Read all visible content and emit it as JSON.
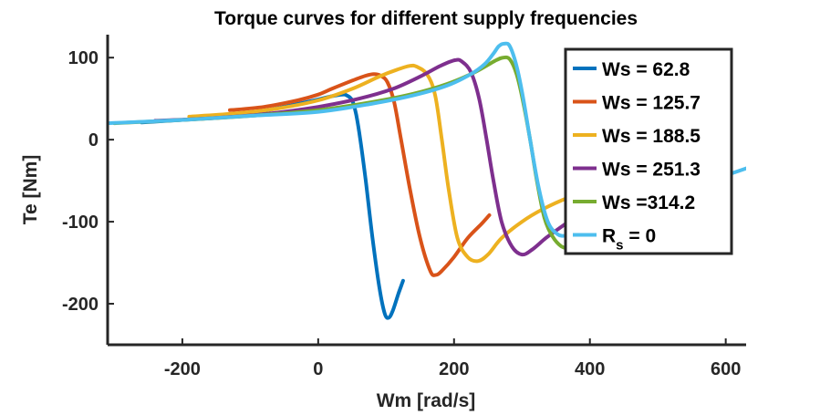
{
  "chart_data": {
    "type": "line",
    "title": "Torque curves for different supply frequencies",
    "xlabel": "Wm [rad/s]",
    "ylabel": "Te [Nm]",
    "xlim": [
      -310,
      630
    ],
    "ylim": [
      -250,
      128
    ],
    "xticks": [
      -200,
      0,
      200,
      400,
      600
    ],
    "yticks": [
      -200,
      -100,
      0,
      100
    ],
    "xtick_labels": [
      "-200",
      "0",
      "200",
      "400",
      "600"
    ],
    "ytick_labels": [
      "-200",
      "-100",
      "0",
      "100"
    ],
    "grid": false,
    "legend_position": "top-right",
    "series": [
      {
        "name": "Ws = 62.8",
        "color": "#0072BD",
        "points": [
          [
            -260,
            21
          ],
          [
            -200,
            24
          ],
          [
            -150,
            27
          ],
          [
            -100,
            32
          ],
          [
            -50,
            40
          ],
          [
            0,
            49
          ],
          [
            20,
            53
          ],
          [
            35,
            55
          ],
          [
            42,
            54
          ],
          [
            50,
            48
          ],
          [
            56,
            30
          ],
          [
            62,
            0
          ],
          [
            70,
            -50
          ],
          [
            80,
            -120
          ],
          [
            90,
            -180
          ],
          [
            98,
            -212
          ],
          [
            104,
            -217
          ],
          [
            110,
            -208
          ],
          [
            118,
            -188
          ],
          [
            125,
            -172
          ]
        ]
      },
      {
        "name": "Ws = 125.7",
        "color": "#D95319",
        "points": [
          [
            -130,
            36
          ],
          [
            -80,
            40
          ],
          [
            -30,
            48
          ],
          [
            0,
            55
          ],
          [
            20,
            62
          ],
          [
            50,
            72
          ],
          [
            70,
            78
          ],
          [
            82,
            80
          ],
          [
            92,
            78
          ],
          [
            102,
            70
          ],
          [
            112,
            45
          ],
          [
            122,
            0
          ],
          [
            135,
            -60
          ],
          [
            150,
            -120
          ],
          [
            165,
            -160
          ],
          [
            173,
            -165
          ],
          [
            182,
            -160
          ],
          [
            200,
            -143
          ],
          [
            220,
            -120
          ],
          [
            240,
            -103
          ],
          [
            252,
            -92
          ]
        ]
      },
      {
        "name": "Ws = 188.5",
        "color": "#EDB120",
        "points": [
          [
            -190,
            28
          ],
          [
            -120,
            32
          ],
          [
            -60,
            38
          ],
          [
            0,
            48
          ],
          [
            50,
            62
          ],
          [
            90,
            77
          ],
          [
            115,
            85
          ],
          [
            135,
            90
          ],
          [
            145,
            89
          ],
          [
            160,
            80
          ],
          [
            172,
            55
          ],
          [
            182,
            0
          ],
          [
            192,
            -60
          ],
          [
            205,
            -120
          ],
          [
            220,
            -143
          ],
          [
            235,
            -148
          ],
          [
            250,
            -140
          ],
          [
            270,
            -120
          ],
          [
            300,
            -100
          ],
          [
            330,
            -85
          ],
          [
            370,
            -70
          ],
          [
            400,
            -62
          ]
        ]
      },
      {
        "name": "Ws = 251.3",
        "color": "#7E2F8E",
        "points": [
          [
            -240,
            23
          ],
          [
            -160,
            26
          ],
          [
            -80,
            31
          ],
          [
            0,
            40
          ],
          [
            60,
            50
          ],
          [
            110,
            62
          ],
          [
            150,
            77
          ],
          [
            180,
            90
          ],
          [
            202,
            97
          ],
          [
            212,
            95
          ],
          [
            225,
            82
          ],
          [
            237,
            50
          ],
          [
            248,
            0
          ],
          [
            258,
            -50
          ],
          [
            270,
            -100
          ],
          [
            285,
            -130
          ],
          [
            300,
            -140
          ],
          [
            315,
            -134
          ],
          [
            335,
            -120
          ],
          [
            355,
            -108
          ],
          [
            375,
            -96
          ]
        ]
      },
      {
        "name": "Ws =314.2",
        "color": "#77AC30",
        "points": [
          [
            -300,
            20
          ],
          [
            -200,
            24
          ],
          [
            -100,
            29
          ],
          [
            0,
            36
          ],
          [
            80,
            46
          ],
          [
            140,
            56
          ],
          [
            190,
            68
          ],
          [
            230,
            82
          ],
          [
            260,
            96
          ],
          [
            272,
            100
          ],
          [
            282,
            98
          ],
          [
            292,
            80
          ],
          [
            302,
            45
          ],
          [
            312,
            0
          ],
          [
            322,
            -50
          ],
          [
            333,
            -95
          ],
          [
            345,
            -118
          ],
          [
            358,
            -130
          ],
          [
            372,
            -133
          ],
          [
            385,
            -130
          ]
        ]
      },
      {
        "name": "R_s = 0",
        "color": "#4DBEEE",
        "points": [
          [
            -310,
            20
          ],
          [
            -200,
            24
          ],
          [
            -100,
            29
          ],
          [
            0,
            34
          ],
          [
            80,
            44
          ],
          [
            140,
            54
          ],
          [
            190,
            66
          ],
          [
            225,
            80
          ],
          [
            245,
            92
          ],
          [
            258,
            105
          ],
          [
            266,
            114
          ],
          [
            274,
            117
          ],
          [
            282,
            114
          ],
          [
            292,
            90
          ],
          [
            302,
            50
          ],
          [
            312,
            0
          ],
          [
            325,
            -60
          ],
          [
            338,
            -100
          ],
          [
            352,
            -115
          ],
          [
            365,
            -117
          ],
          [
            380,
            -113
          ],
          [
            400,
            -106
          ],
          [
            450,
            -90
          ],
          [
            500,
            -72
          ],
          [
            560,
            -55
          ],
          [
            630,
            -35
          ]
        ]
      }
    ]
  }
}
